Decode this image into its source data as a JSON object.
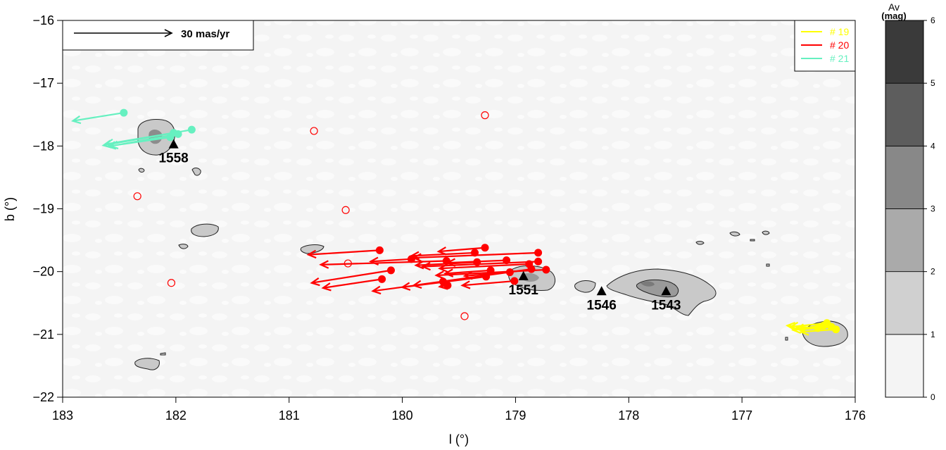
{
  "chart_data": {
    "type": "scatter",
    "xlabel": "l (°)",
    "ylabel": "b (°)",
    "xlim": [
      183,
      176
    ],
    "ylim": [
      -22,
      -16
    ],
    "xticks": [
      "183",
      "182",
      "181",
      "180",
      "179",
      "178",
      "177",
      "176"
    ],
    "yticks": [
      "−22",
      "−21",
      "−20",
      "−19",
      "−18",
      "−17",
      "−16"
    ],
    "scale_arrow_label": "30 mas/yr",
    "legend": {
      "position": "top-right",
      "entries": [
        {
          "name": "# 19",
          "color": "#ffff00"
        },
        {
          "name": "# 20",
          "color": "#ff0000"
        },
        {
          "name": "# 21",
          "color": "#66f0c0"
        }
      ]
    },
    "colorbar": {
      "title_line1": "Av",
      "title_line2": "(mag)",
      "ticks": [
        "0",
        "1",
        "2",
        "3",
        "4",
        "5",
        "6"
      ],
      "range": [
        0,
        6
      ],
      "colors": [
        "#f4f4f4",
        "#d0d0d0",
        "#aaaaaa",
        "#888888",
        "#5d5d5d",
        "#3a3a3a"
      ]
    },
    "clouds": [
      {
        "label": "1558",
        "l": 182.02,
        "b": -17.97
      },
      {
        "label": "1551",
        "l": 178.93,
        "b": -20.07
      },
      {
        "label": "1546",
        "l": 178.24,
        "b": -20.31
      },
      {
        "label": "1543",
        "l": 177.67,
        "b": -20.31
      }
    ],
    "series": [
      {
        "name": "# 19",
        "color": "#ffff00",
        "arrows": [
          {
            "l": 176.25,
            "b": -20.82,
            "l_end": 176.57,
            "b_end": -20.88
          },
          {
            "l": 176.21,
            "b": -20.88,
            "l_end": 176.55,
            "b_end": -20.93
          },
          {
            "l": 176.33,
            "b": -20.9,
            "l_end": 176.6,
            "b_end": -20.86
          },
          {
            "l": 176.17,
            "b": -20.92,
            "l_end": 176.48,
            "b_end": -20.96
          },
          {
            "l": 176.28,
            "b": -20.86,
            "l_end": 176.52,
            "b_end": -20.91
          }
        ]
      },
      {
        "name": "# 20",
        "color": "#ff0000",
        "arrows": [
          {
            "l": 180.2,
            "b": -19.66,
            "l_end": 180.83,
            "b_end": -19.73
          },
          {
            "l": 179.27,
            "b": -19.62,
            "l_end": 179.68,
            "b_end": -19.68
          },
          {
            "l": 178.8,
            "b": -19.7,
            "l_end": 179.9,
            "b_end": -19.78
          },
          {
            "l": 179.36,
            "b": -19.7,
            "l_end": 179.92,
            "b_end": -19.75
          },
          {
            "l": 178.8,
            "b": -19.84,
            "l_end": 179.82,
            "b_end": -19.92
          },
          {
            "l": 179.08,
            "b": -19.82,
            "l_end": 179.6,
            "b_end": -19.86
          },
          {
            "l": 179.61,
            "b": -19.83,
            "l_end": 180.72,
            "b_end": -19.89
          },
          {
            "l": 179.34,
            "b": -19.85,
            "l_end": 179.88,
            "b_end": -19.9
          },
          {
            "l": 179.92,
            "b": -19.8,
            "l_end": 180.28,
            "b_end": -19.84
          },
          {
            "l": 178.88,
            "b": -19.88,
            "l_end": 179.67,
            "b_end": -19.95
          },
          {
            "l": 180.1,
            "b": -19.98,
            "l_end": 180.8,
            "b_end": -20.18
          },
          {
            "l": 178.73,
            "b": -19.97,
            "l_end": 179.7,
            "b_end": -20.06
          },
          {
            "l": 179.22,
            "b": -19.98,
            "l_end": 179.62,
            "b_end": -20.03
          },
          {
            "l": 179.05,
            "b": -20.01,
            "l_end": 179.45,
            "b_end": -20.07
          },
          {
            "l": 178.86,
            "b": -19.96,
            "l_end": 179.9,
            "b_end": -20.22
          },
          {
            "l": 179.26,
            "b": -20.08,
            "l_end": 180.0,
            "b_end": -20.25
          },
          {
            "l": 180.18,
            "b": -20.12,
            "l_end": 180.7,
            "b_end": -20.26
          },
          {
            "l": 179.01,
            "b": -20.15,
            "l_end": 179.47,
            "b_end": -20.22
          },
          {
            "l": 179.64,
            "b": -20.16,
            "l_end": 180.26,
            "b_end": -20.31
          },
          {
            "l": 179.6,
            "b": -20.22,
            "l_end": 179.67,
            "b_end": -20.24
          }
        ],
        "open_points": [
          {
            "l": 182.34,
            "b": -18.8
          },
          {
            "l": 182.04,
            "b": -20.18
          },
          {
            "l": 180.78,
            "b": -17.76
          },
          {
            "l": 180.5,
            "b": -19.02
          },
          {
            "l": 180.48,
            "b": -19.87
          },
          {
            "l": 179.27,
            "b": -17.51
          },
          {
            "l": 179.45,
            "b": -20.71
          }
        ]
      },
      {
        "name": "# 21",
        "color": "#66f0c0",
        "arrows": [
          {
            "l": 182.46,
            "b": -17.47,
            "l_end": 182.91,
            "b_end": -17.6
          },
          {
            "l": 181.86,
            "b": -17.74,
            "l_end": 182.64,
            "b_end": -17.99
          },
          {
            "l": 182.02,
            "b": -17.79,
            "l_end": 182.62,
            "b_end": -17.97
          },
          {
            "l": 181.98,
            "b": -17.81,
            "l_end": 182.6,
            "b_end": -18.01
          },
          {
            "l": 182.05,
            "b": -17.86,
            "l_end": 182.58,
            "b_end": -18.0
          }
        ]
      }
    ]
  }
}
